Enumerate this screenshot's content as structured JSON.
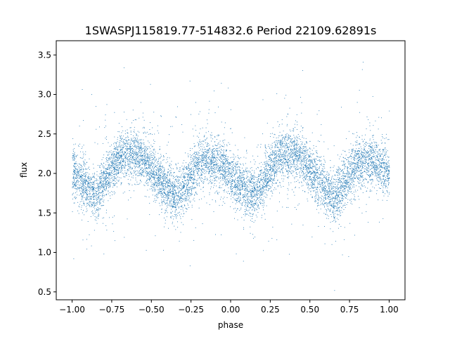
{
  "chart_data": {
    "type": "scatter",
    "title": "1SWASPJ115819.77-514832.6 Period 22109.62891s",
    "xlabel": "phase",
    "ylabel": "flux",
    "xlim": [
      -1.1,
      1.1
    ],
    "ylim": [
      0.4,
      3.68
    ],
    "x_ticks": [
      -1.0,
      -0.75,
      -0.5,
      -0.25,
      0.0,
      0.25,
      0.5,
      0.75,
      1.0
    ],
    "x_tick_labels": [
      "−1.00",
      "−0.75",
      "−0.50",
      "−0.25",
      "0.00",
      "0.25",
      "0.50",
      "0.75",
      "1.00"
    ],
    "y_ticks": [
      0.5,
      1.0,
      1.5,
      2.0,
      2.5,
      3.0,
      3.5
    ],
    "y_tick_labels": [
      "0.5",
      "1.0",
      "1.5",
      "2.0",
      "2.5",
      "3.0",
      "3.5"
    ],
    "grid": false,
    "legend": "none",
    "marker_color": "#1f77b4",
    "series": [
      {
        "x": [
          -1.0,
          -0.95,
          -0.9,
          -0.85,
          -0.8,
          -0.75,
          -0.7,
          -0.65,
          -0.6,
          -0.55,
          -0.5,
          -0.45,
          -0.4,
          -0.35,
          -0.3,
          -0.25,
          -0.2,
          -0.15,
          -0.1,
          -0.05,
          0.0,
          0.05,
          0.1,
          0.15,
          0.2,
          0.25,
          0.3,
          0.35,
          0.4,
          0.45,
          0.5,
          0.55,
          0.6,
          0.65,
          0.7,
          0.75,
          0.8,
          0.85,
          0.9,
          0.95,
          1.0
        ],
        "y": [
          2.02,
          1.92,
          1.82,
          1.72,
          1.88,
          2.08,
          2.2,
          2.26,
          2.25,
          2.18,
          2.05,
          1.92,
          1.8,
          1.72,
          1.82,
          2.0,
          2.12,
          2.17,
          2.15,
          2.08,
          1.98,
          1.87,
          1.8,
          1.77,
          1.85,
          2.05,
          2.2,
          2.26,
          2.25,
          2.18,
          2.05,
          1.92,
          1.8,
          1.72,
          1.82,
          2.0,
          2.12,
          2.17,
          2.15,
          2.08,
          2.02
        ]
      }
    ]
  }
}
